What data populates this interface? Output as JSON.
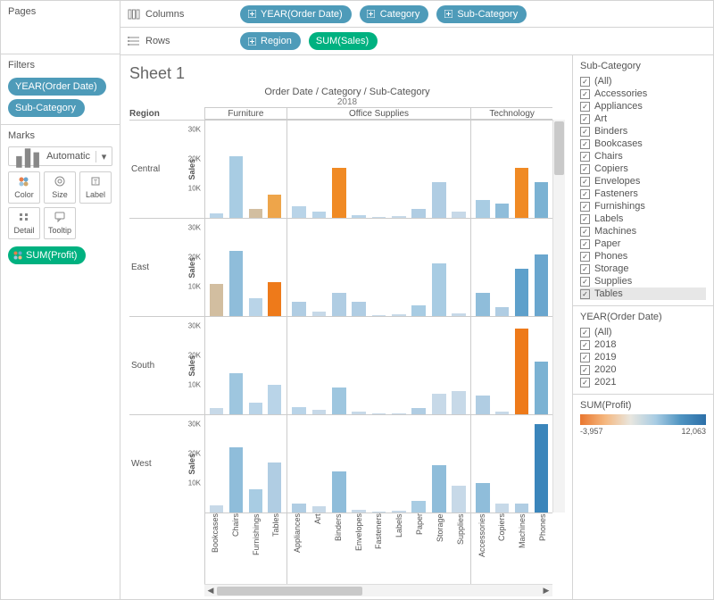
{
  "shelves": {
    "columns_label": "Columns",
    "rows_label": "Rows",
    "columns": [
      {
        "label": "YEAR(Order Date)",
        "color": "blue",
        "icon": "plus"
      },
      {
        "label": "Category",
        "color": "blue",
        "icon": "plus"
      },
      {
        "label": "Sub-Category",
        "color": "blue",
        "icon": "plus"
      }
    ],
    "rows": [
      {
        "label": "Region",
        "color": "blue",
        "icon": "plus"
      },
      {
        "label": "SUM(Sales)",
        "color": "green",
        "icon": ""
      }
    ]
  },
  "left": {
    "pages_title": "Pages",
    "filters_title": "Filters",
    "filters": [
      {
        "label": "YEAR(Order Date)",
        "color": "blue"
      },
      {
        "label": "Sub-Category",
        "color": "blue"
      }
    ],
    "marks_title": "Marks",
    "marks_type": "Automatic",
    "mark_buttons": [
      {
        "name": "color-button",
        "label": "Color",
        "glyph": "color"
      },
      {
        "name": "size-button",
        "label": "Size",
        "glyph": "size"
      },
      {
        "name": "label-button",
        "label": "Label",
        "glyph": "label"
      },
      {
        "name": "detail-button",
        "label": "Detail",
        "glyph": "detail"
      },
      {
        "name": "tooltip-button",
        "label": "Tooltip",
        "glyph": "tooltip"
      }
    ],
    "mark_pill": {
      "label": "SUM(Profit)",
      "color": "green"
    }
  },
  "viz": {
    "sheet_title": "Sheet 1",
    "breadcrumb": "Order Date / Category / Sub-Category",
    "year": "2018",
    "region_header": "Region",
    "y_axis_label": "Sales",
    "y_ticks": [
      "30K",
      "20K",
      "10K"
    ],
    "y_max": 33000,
    "categories": [
      {
        "label": "Furniture",
        "subs": [
          "Bookcases",
          "Chairs",
          "Furnishings",
          "Tables"
        ]
      },
      {
        "label": "Office Supplies",
        "subs": [
          "Appliances",
          "Art",
          "Binders",
          "Envelopes",
          "Fasteners",
          "Labels",
          "Paper",
          "Storage",
          "Supplies"
        ]
      },
      {
        "label": "Technology",
        "subs": [
          "Accessories",
          "Copiers",
          "Machines",
          "Phones"
        ]
      }
    ],
    "regions": [
      "Central",
      "East",
      "South",
      "West"
    ],
    "data": {
      "Central": {
        "Bookcases": [
          1500,
          "#b9d4e8"
        ],
        "Chairs": [
          21000,
          "#a8cce3"
        ],
        "Furnishings": [
          3000,
          "#d2bea0"
        ],
        "Tables": [
          8000,
          "#eea54a"
        ],
        "Appliances": [
          4000,
          "#b9d4e8"
        ],
        "Art": [
          2000,
          "#b9d4e8"
        ],
        "Binders": [
          17000,
          "#f08a24"
        ],
        "Envelopes": [
          1000,
          "#b9d4e8"
        ],
        "Fasteners": [
          400,
          "#c7d9e8"
        ],
        "Labels": [
          600,
          "#c7d9e8"
        ],
        "Paper": [
          3000,
          "#b0cde3"
        ],
        "Storage": [
          12000,
          "#b0cde3"
        ],
        "Supplies": [
          2000,
          "#c7d9e8"
        ],
        "Accessories": [
          6000,
          "#a8cce3"
        ],
        "Copiers": [
          5000,
          "#8fbdda"
        ],
        "Machines": [
          17000,
          "#f08a24"
        ],
        "Phones": [
          12000,
          "#7bb2d3"
        ]
      },
      "East": {
        "Bookcases": [
          11000,
          "#d2bea0"
        ],
        "Chairs": [
          22000,
          "#8fbdda"
        ],
        "Furnishings": [
          6000,
          "#b9d4e8"
        ],
        "Tables": [
          11500,
          "#ee7a1a"
        ],
        "Appliances": [
          5000,
          "#b0cde3"
        ],
        "Art": [
          1500,
          "#c7d9e8"
        ],
        "Binders": [
          8000,
          "#b0cde3"
        ],
        "Envelopes": [
          5000,
          "#b0cde3"
        ],
        "Fasteners": [
          300,
          "#c7d9e8"
        ],
        "Labels": [
          600,
          "#c7d9e8"
        ],
        "Paper": [
          3500,
          "#a8cce3"
        ],
        "Storage": [
          18000,
          "#a8cce3"
        ],
        "Supplies": [
          1000,
          "#c7d9e8"
        ],
        "Accessories": [
          8000,
          "#8fbdda"
        ],
        "Copiers": [
          3000,
          "#b0cde3"
        ],
        "Machines": [
          16000,
          "#5ea0cb"
        ],
        "Phones": [
          21000,
          "#6aa6ce"
        ]
      },
      "South": {
        "Bookcases": [
          2000,
          "#c7d9e8"
        ],
        "Chairs": [
          14000,
          "#9ec6df"
        ],
        "Furnishings": [
          4000,
          "#b9d4e8"
        ],
        "Tables": [
          10000,
          "#b9d4e8"
        ],
        "Appliances": [
          2500,
          "#b9d4e8"
        ],
        "Art": [
          1500,
          "#c7d9e8"
        ],
        "Binders": [
          9000,
          "#9ec6df"
        ],
        "Envelopes": [
          800,
          "#c7d9e8"
        ],
        "Fasteners": [
          200,
          "#c7d9e8"
        ],
        "Labels": [
          400,
          "#c7d9e8"
        ],
        "Paper": [
          2000,
          "#b0cde3"
        ],
        "Storage": [
          7000,
          "#c7d9e8"
        ],
        "Supplies": [
          8000,
          "#c7d9e8"
        ],
        "Accessories": [
          6500,
          "#b0cde3"
        ],
        "Copiers": [
          1000,
          "#c7d9e8"
        ],
        "Machines": [
          29000,
          "#ee7a1a"
        ],
        "Phones": [
          18000,
          "#7bb2d3"
        ]
      },
      "West": {
        "Bookcases": [
          2500,
          "#c7d9e8"
        ],
        "Chairs": [
          22000,
          "#8fbdda"
        ],
        "Furnishings": [
          8000,
          "#a8cce3"
        ],
        "Tables": [
          17000,
          "#b0cde3"
        ],
        "Appliances": [
          3000,
          "#b0cde3"
        ],
        "Art": [
          2000,
          "#c7d9e8"
        ],
        "Binders": [
          14000,
          "#8fbdda"
        ],
        "Envelopes": [
          900,
          "#c7d9e8"
        ],
        "Fasteners": [
          300,
          "#c7d9e8"
        ],
        "Labels": [
          700,
          "#c7d9e8"
        ],
        "Paper": [
          4000,
          "#a8cce3"
        ],
        "Storage": [
          16000,
          "#8fbdda"
        ],
        "Supplies": [
          9000,
          "#c7d9e8"
        ],
        "Accessories": [
          10000,
          "#8fbdda"
        ],
        "Copiers": [
          3000,
          "#c7d9e8"
        ],
        "Machines": [
          3000,
          "#b0cde3"
        ],
        "Phones": [
          30000,
          "#3a85bb"
        ]
      }
    }
  },
  "right": {
    "subcat_title": "Sub-Category",
    "subcat_items": [
      "(All)",
      "Accessories",
      "Appliances",
      "Art",
      "Binders",
      "Bookcases",
      "Chairs",
      "Copiers",
      "Envelopes",
      "Fasteners",
      "Furnishings",
      "Labels",
      "Machines",
      "Paper",
      "Phones",
      "Storage",
      "Supplies",
      "Tables"
    ],
    "subcat_selected": "Tables",
    "year_title": "YEAR(Order Date)",
    "year_items": [
      "(All)",
      "2018",
      "2019",
      "2020",
      "2021"
    ],
    "legend_title": "SUM(Profit)",
    "legend_min": "-3,957",
    "legend_max": "12,063",
    "gradient_stops": [
      "#e9762e",
      "#f5b880",
      "#e8e6df",
      "#a8cce3",
      "#4e93c1",
      "#2c6fa8"
    ]
  }
}
